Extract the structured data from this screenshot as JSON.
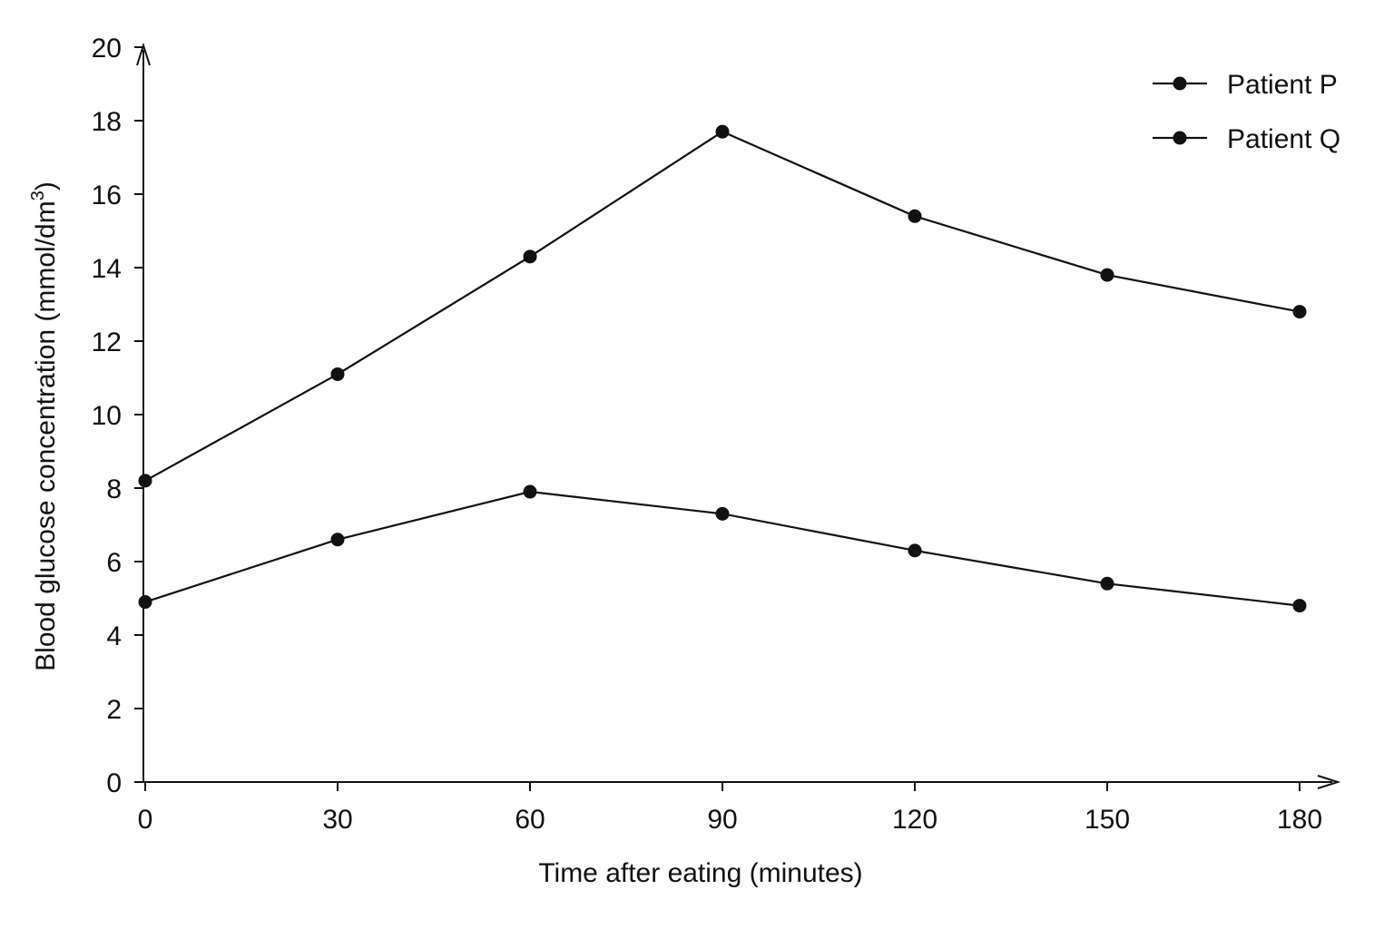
{
  "chart_data": {
    "type": "line",
    "title": "",
    "xlabel": "Time after eating (minutes)",
    "ylabel_main": "Blood glucose concentration (mmol/dm",
    "ylabel_sup": "3",
    "ylabel_close": ")",
    "ylabel": "Blood glucose concentration (mmol/dm3)",
    "x": [
      0,
      30,
      60,
      90,
      120,
      150,
      180
    ],
    "x_tick_labels": [
      "0",
      "30",
      "60",
      "90",
      "120",
      "150",
      "180"
    ],
    "y_tick_labels": [
      "0",
      "2",
      "4",
      "6",
      "8",
      "10",
      "12",
      "14",
      "16",
      "18",
      "20"
    ],
    "xlim": [
      0,
      180
    ],
    "ylim": [
      0,
      20
    ],
    "grid": false,
    "legend_position": "top-right",
    "series": [
      {
        "name": "Patient P",
        "values": [
          8.2,
          11.1,
          14.3,
          17.7,
          15.4,
          13.8,
          12.8
        ]
      },
      {
        "name": "Patient Q",
        "values": [
          4.9,
          6.6,
          7.9,
          7.3,
          6.3,
          5.4,
          4.8
        ]
      }
    ]
  }
}
